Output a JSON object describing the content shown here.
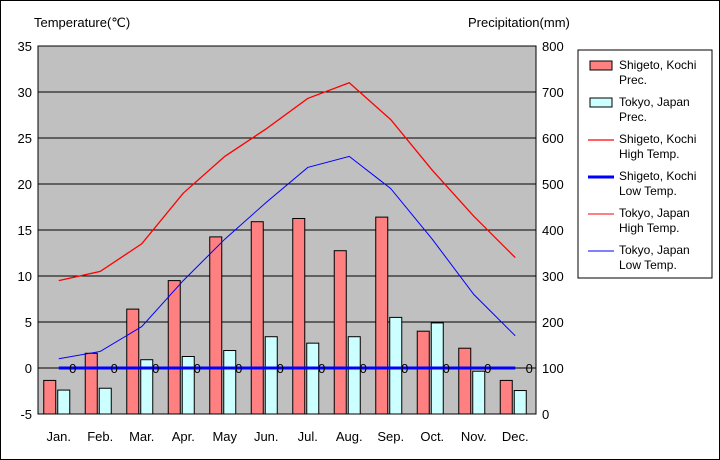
{
  "chart_data": {
    "type": "bar",
    "left_axis_title": "Temperature(℃)",
    "right_axis_title": "Precipitation(mm)",
    "categories": [
      "Jan.",
      "Feb.",
      "Mar.",
      "Apr.",
      "May",
      "Jun.",
      "Jul.",
      "Aug.",
      "Sep.",
      "Oct.",
      "Nov.",
      "Dec."
    ],
    "left_axis": {
      "min": -5,
      "max": 35,
      "step": 5,
      "ticks": [
        "-5",
        "0",
        "5",
        "10",
        "15",
        "20",
        "25",
        "30",
        "35"
      ]
    },
    "right_axis": {
      "min": 0,
      "max": 800,
      "step": 100,
      "ticks": [
        "0",
        "100",
        "200",
        "300",
        "400",
        "500",
        "600",
        "700",
        "800"
      ]
    },
    "grid": true,
    "legend_position": "right",
    "bar_series": [
      {
        "name": "Shigeto, Kochi Prec.",
        "legend_lines": [
          "Shigeto, Kochi",
          "Prec."
        ],
        "color": "#ff8080",
        "values": [
          73,
          132,
          228,
          290,
          385,
          418,
          425,
          355,
          428,
          180,
          143,
          73
        ]
      },
      {
        "name": "Tokyo, Japan Prec.",
        "legend_lines": [
          "Tokyo, Japan",
          "Prec."
        ],
        "color": "#ccffff",
        "values": [
          52,
          56,
          118,
          125,
          138,
          168,
          154,
          168,
          210,
          198,
          93,
          51
        ]
      }
    ],
    "line_series": [
      {
        "name": "Shigeto, Kochi High Temp.",
        "legend_lines": [
          "Shigeto, Kochi",
          "High Temp."
        ],
        "color": "#ff0000",
        "width": 1.3,
        "values": [
          9.5,
          10.5,
          13.5,
          19,
          23,
          26,
          29.3,
          31,
          27,
          21.5,
          16.5,
          12
        ]
      },
      {
        "name": "Shigeto, Kochi Low Temp.",
        "legend_lines": [
          "Shigeto, Kochi",
          "Low Temp."
        ],
        "color": "#0000ff",
        "width": 3,
        "values": [
          0,
          0,
          0,
          0,
          0,
          0,
          0,
          0,
          0,
          0,
          0,
          0
        ],
        "point_labels": [
          "0",
          "0",
          "0",
          "0",
          "0",
          "0",
          "0",
          "0",
          "0",
          "0",
          "0",
          "0"
        ]
      },
      {
        "name": "Tokyo, Japan High Temp.",
        "legend_lines": [
          "Tokyo, Japan",
          "High Temp."
        ],
        "color": "#ff0000",
        "width": 1,
        "values": [
          null,
          null,
          null,
          null,
          null,
          null,
          null,
          null,
          null,
          null,
          null,
          null
        ]
      },
      {
        "name": "Tokyo, Japan Low Temp.",
        "legend_lines": [
          "Tokyo, Japan",
          "Low Temp."
        ],
        "color": "#0000ff",
        "width": 1,
        "values": [
          1,
          1.8,
          4.5,
          9.5,
          14,
          18,
          21.8,
          23,
          19.5,
          14,
          8,
          3.5
        ]
      }
    ]
  }
}
